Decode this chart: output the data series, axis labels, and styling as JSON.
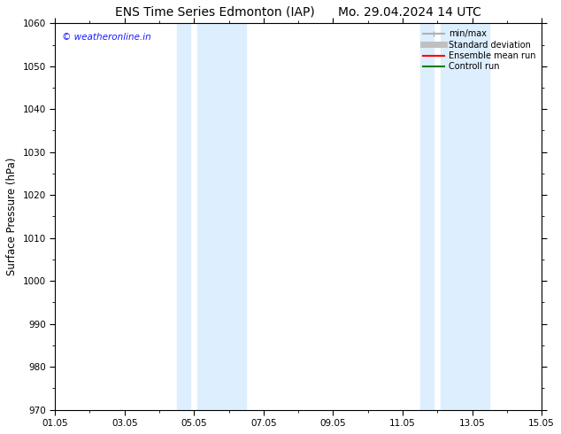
{
  "title_left": "ENS Time Series Edmonton (IAP)",
  "title_right": "Mo. 29.04.2024 14 UTC",
  "ylabel": "Surface Pressure (hPa)",
  "ylim": [
    970,
    1060
  ],
  "yticks": [
    970,
    980,
    990,
    1000,
    1010,
    1020,
    1030,
    1040,
    1050,
    1060
  ],
  "xlim_min": 0.0,
  "xlim_max": 14.0,
  "xtick_positions": [
    0,
    2,
    4,
    6,
    8,
    10,
    12,
    14
  ],
  "xtick_labels": [
    "01.05",
    "03.05",
    "05.05",
    "07.05",
    "09.05",
    "11.05",
    "13.05",
    "15.05"
  ],
  "shaded_regions": [
    {
      "xmin": 3.5,
      "xmax": 3.9,
      "color": "#ddeeff"
    },
    {
      "xmin": 4.1,
      "xmax": 5.5,
      "color": "#ddeeff"
    },
    {
      "xmin": 10.5,
      "xmax": 10.9,
      "color": "#ddeeff"
    },
    {
      "xmin": 11.1,
      "xmax": 12.5,
      "color": "#ddeeff"
    }
  ],
  "watermark_text": "© weatheronline.in",
  "watermark_color": "#1a1aff",
  "legend_entries": [
    {
      "label": "min/max",
      "color": "#b0b0b0",
      "lw": 1.5,
      "style": "-"
    },
    {
      "label": "Standard deviation",
      "color": "#c0c0c0",
      "lw": 5,
      "style": "-"
    },
    {
      "label": "Ensemble mean run",
      "color": "#ff0000",
      "lw": 1.5,
      "style": "-"
    },
    {
      "label": "Controll run",
      "color": "#008000",
      "lw": 1.5,
      "style": "-"
    }
  ],
  "bg_color": "#ffffff",
  "plot_bg_color": "#ffffff",
  "title_fontsize": 10,
  "axis_label_fontsize": 8.5,
  "tick_fontsize": 7.5,
  "watermark_fontsize": 7.5
}
